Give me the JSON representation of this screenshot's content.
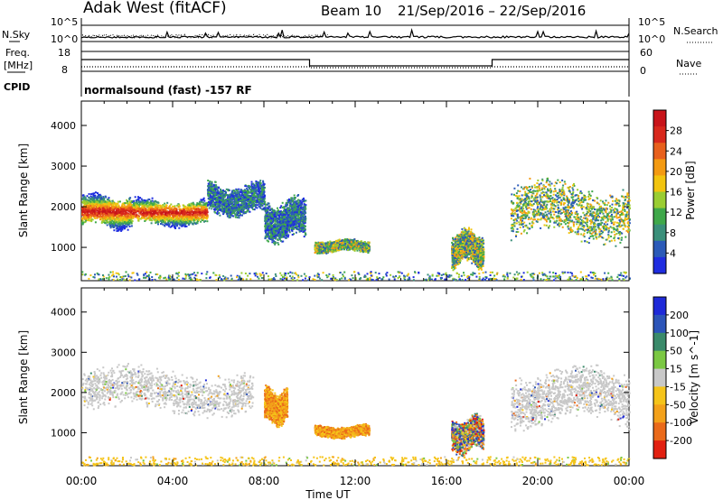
{
  "header": {
    "station": "Adak West (fitACF)",
    "beam": "Beam 10",
    "daterange": "21/Sep/2016 – 22/Sep/2016"
  },
  "status": {
    "nsky_label": "N.Sky",
    "nsky_ticks": [
      "10^5",
      "10^0"
    ],
    "nsearch_label": "N.Search",
    "nsearch_ticks": [
      "10^5",
      "10^0"
    ],
    "freq_label": "Freq.",
    "freq_unit": "[MHz]",
    "freq_ticks": [
      "18",
      "8"
    ],
    "nave_label": "Nave",
    "nave_ticks": [
      "60",
      "0"
    ],
    "cpid_label": "CPID",
    "cpid_text": "normalsound (fast) -157 RF"
  },
  "chart_data": [
    {
      "type": "heatmap",
      "ylabel": "Slant Range [km]",
      "xlabel": "",
      "x_ticks": [
        "00:00",
        "04:00",
        "08:00",
        "12:00",
        "16:00",
        "20:00",
        "00:00"
      ],
      "xlim_hours": [
        0,
        24
      ],
      "y_ticks": [
        1000,
        2000,
        3000,
        4000
      ],
      "ylim_km": [
        180,
        4600
      ],
      "colorbar": {
        "label": "Power [dB]",
        "ticks": [
          "4",
          "8",
          "12",
          "16",
          "20",
          "24",
          "28"
        ],
        "colors": [
          "#1f2de0",
          "#2b5ab8",
          "#3a8f7a",
          "#3fa84a",
          "#9acd32",
          "#f2c40f",
          "#f39a12",
          "#e8601c",
          "#d8281c",
          "#c8141a"
        ]
      },
      "echo_bands": [
        {
          "t": [
            0.0,
            2.2
          ],
          "range_km": [
            1500,
            2300
          ],
          "level": "strong"
        },
        {
          "t": [
            2.2,
            5.5
          ],
          "range_km": [
            1550,
            2200
          ],
          "level": "strong"
        },
        {
          "t": [
            5.5,
            8.0
          ],
          "range_km": [
            1800,
            2600
          ],
          "level": "weak"
        },
        {
          "t": [
            8.0,
            9.8
          ],
          "range_km": [
            1200,
            2200
          ],
          "level": "weak"
        },
        {
          "t": [
            10.2,
            12.6
          ],
          "range_km": [
            900,
            1200
          ],
          "level": "medium"
        },
        {
          "t": [
            16.2,
            17.6
          ],
          "range_km": [
            550,
            1400
          ],
          "level": "medium"
        },
        {
          "t": [
            18.8,
            24.0
          ],
          "range_km": [
            1200,
            2600
          ],
          "level": "medium"
        },
        {
          "t": [
            0.0,
            24.0
          ],
          "range_km": [
            190,
            420
          ],
          "level": "ground"
        }
      ]
    },
    {
      "type": "heatmap",
      "ylabel": "Slant Range [km]",
      "xlabel": "Time UT",
      "x_ticks": [
        "00:00",
        "04:00",
        "08:00",
        "12:00",
        "16:00",
        "20:00",
        "00:00"
      ],
      "xlim_hours": [
        0,
        24
      ],
      "y_ticks": [
        1000,
        2000,
        3000,
        4000
      ],
      "ylim_km": [
        180,
        4600
      ],
      "colorbar": {
        "label": "Velocity [m s^-1]",
        "ticks": [
          "200",
          "100",
          "50",
          "15",
          "-15",
          "-50",
          "-100",
          "-200"
        ],
        "colors": [
          "#1e2ad8",
          "#2c54b8",
          "#3a8a6a",
          "#7bc843",
          "#c8c8c8",
          "#f5c41a",
          "#f3a11a",
          "#ea6a1a",
          "#e22010"
        ]
      },
      "echo_bands": [
        {
          "t": [
            0.0,
            7.5
          ],
          "range_km": [
            1500,
            2600
          ],
          "velocity": "grey"
        },
        {
          "t": [
            8.0,
            9.0
          ],
          "range_km": [
            1250,
            2100
          ],
          "velocity": "negative"
        },
        {
          "t": [
            10.2,
            12.6
          ],
          "range_km": [
            900,
            1200
          ],
          "velocity": "negative"
        },
        {
          "t": [
            16.2,
            17.6
          ],
          "range_km": [
            550,
            1400
          ],
          "velocity": "mixed"
        },
        {
          "t": [
            18.8,
            24.0
          ],
          "range_km": [
            1200,
            2600
          ],
          "velocity": "grey"
        },
        {
          "t": [
            0.0,
            24.0
          ],
          "range_km": [
            190,
            420
          ],
          "velocity": "ground"
        }
      ]
    }
  ]
}
